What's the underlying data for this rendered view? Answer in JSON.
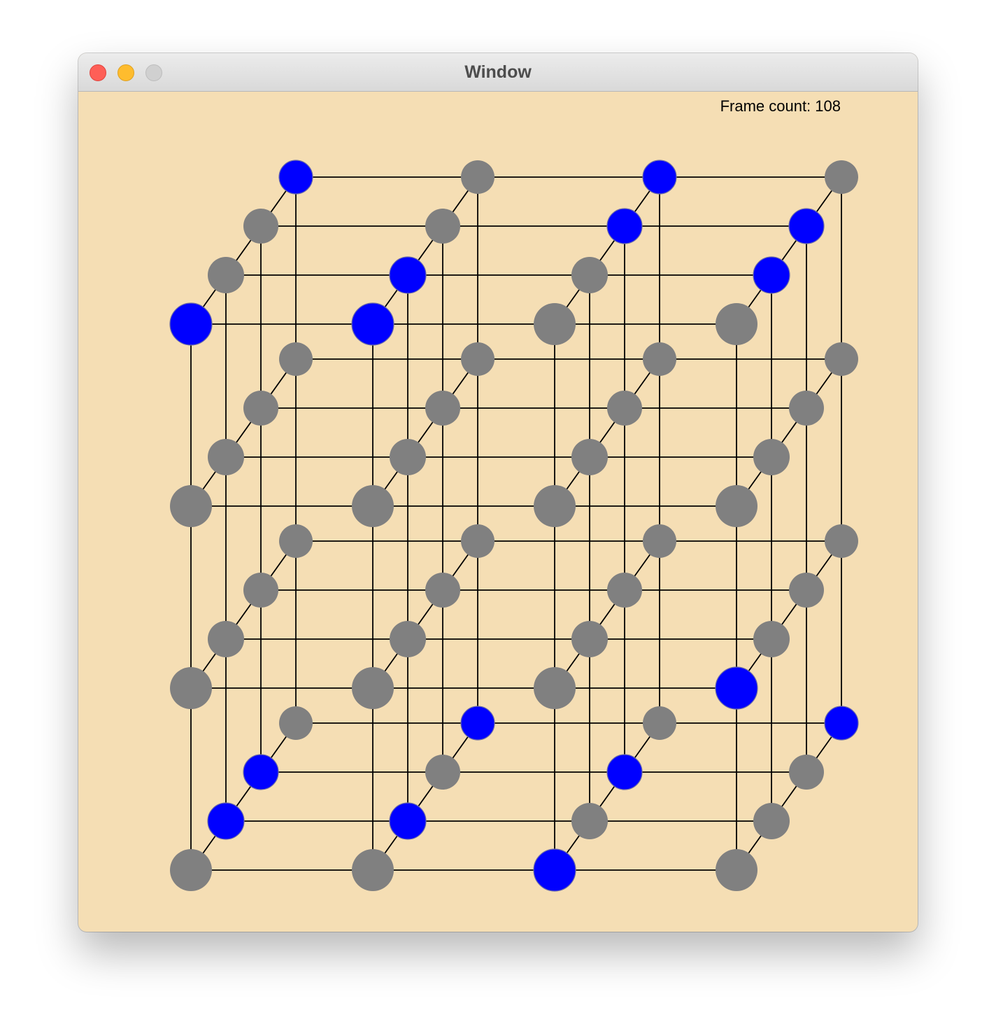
{
  "window": {
    "title": "Window"
  },
  "hud": {
    "frame_count_text": "Frame count: 108"
  },
  "colors": {
    "background": "#f5deb4",
    "node_inactive": "#808080",
    "node_active": "#0000ff",
    "edge": "#000000"
  },
  "lattice": {
    "size": 4,
    "index_order": "z, y, x (z = depth layer 0 front .. 3 back; y = row 0 top .. 3 bottom; x = column 0 left .. 3 right)",
    "active_nodes": [
      [
        0,
        0,
        0
      ],
      [
        0,
        0,
        1
      ],
      [
        3,
        0,
        0
      ],
      [
        3,
        0,
        2
      ],
      [
        2,
        0,
        2
      ],
      [
        2,
        0,
        3
      ],
      [
        1,
        0,
        1
      ],
      [
        1,
        0,
        3
      ],
      [
        0,
        2,
        3
      ],
      [
        3,
        3,
        1
      ],
      [
        3,
        3,
        3
      ],
      [
        2,
        3,
        0
      ],
      [
        2,
        3,
        2
      ],
      [
        1,
        3,
        0
      ],
      [
        1,
        3,
        1
      ],
      [
        0,
        3,
        2
      ]
    ]
  }
}
